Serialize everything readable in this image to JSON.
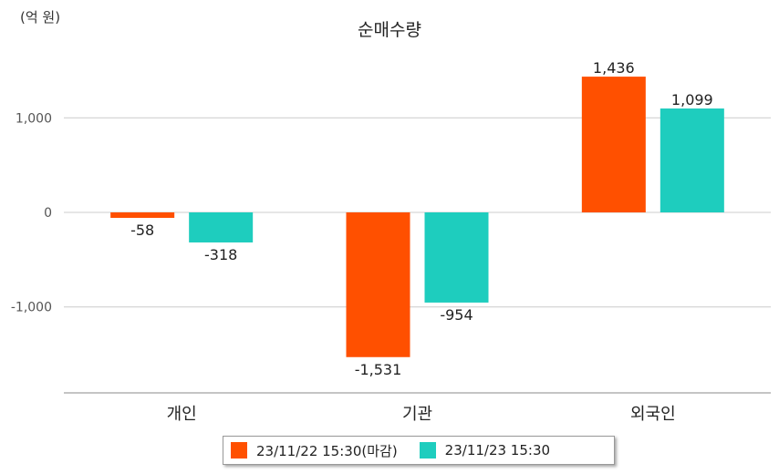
{
  "unit_label": "(억 원)",
  "chart_data": {
    "type": "bar",
    "title": "순매수량",
    "categories": [
      "개인",
      "기관",
      "외국인"
    ],
    "series": [
      {
        "name": "23/11/22 15:30(마감)",
        "color": "#ff5000",
        "values": [
          -58,
          -1531,
          1436
        ],
        "labels": [
          "-58",
          "-1,531",
          "1,436"
        ]
      },
      {
        "name": "23/11/23 15:30",
        "color": "#1ecdbe",
        "values": [
          -318,
          -954,
          1099
        ],
        "labels": [
          "-318",
          "-954",
          "1,099"
        ]
      }
    ],
    "yticks": [
      1000,
      0,
      -1000
    ],
    "ytick_labels": [
      "1,000",
      "0",
      "-1,000"
    ],
    "ylim": [
      -1900,
      1700
    ],
    "grid": true,
    "legend_position": "bottom"
  }
}
